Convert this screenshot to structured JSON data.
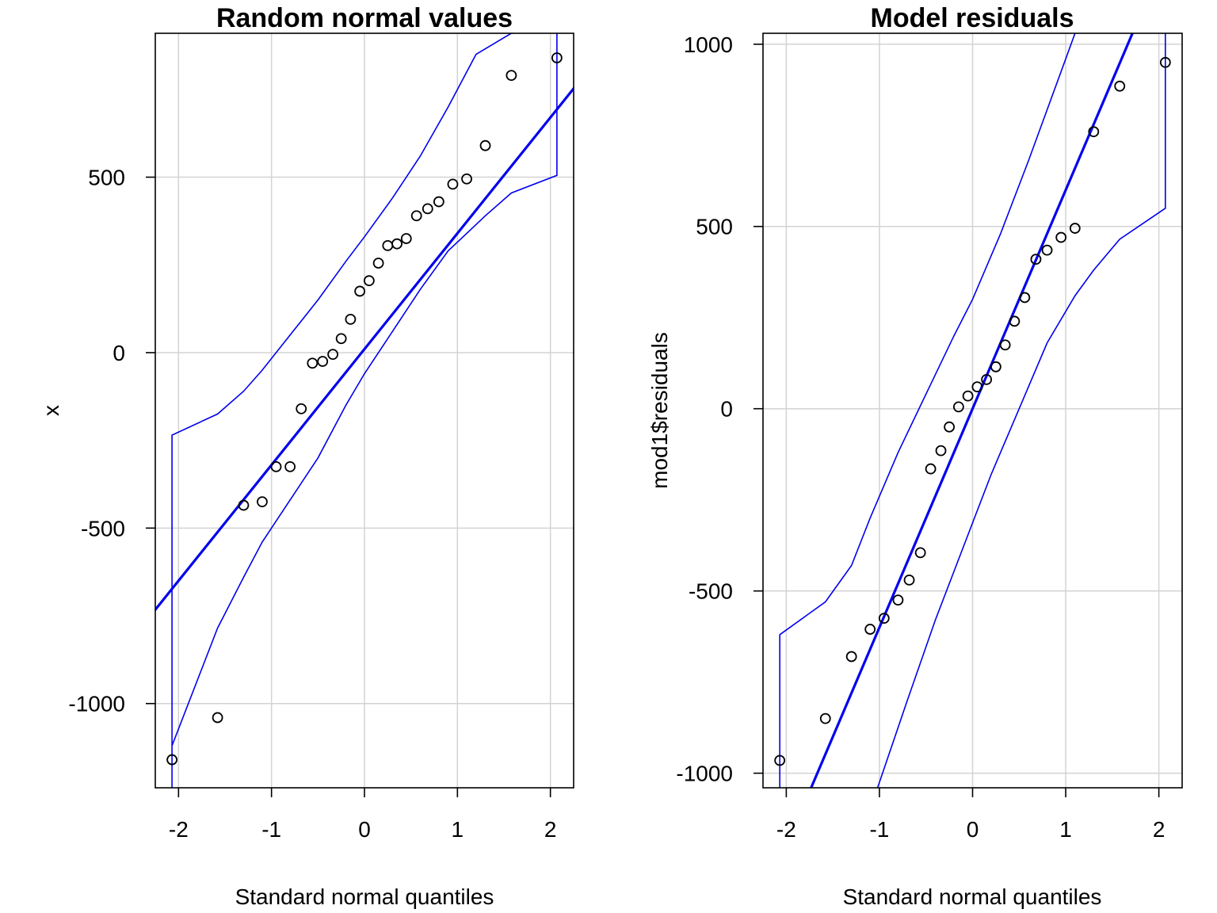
{
  "colors": {
    "envelope": "#0000ee",
    "fit_line": "#0000ee",
    "grid": "#d3d3d3",
    "axis": "#000000",
    "points": "#000000"
  },
  "chart_data": [
    {
      "type": "scatter",
      "title": "Random normal values",
      "xlabel": "Standard normal quantiles",
      "ylabel": "x",
      "xlim": [
        -2.25,
        2.25
      ],
      "ylim": [
        -1240,
        910
      ],
      "xticks": [
        -2,
        -1,
        0,
        1,
        2
      ],
      "xtick_labels": [
        "-2",
        "-1",
        "0",
        "1",
        "2"
      ],
      "yticks": [
        -1000,
        -500,
        0,
        500
      ],
      "ytick_labels": [
        "-1000",
        "-500",
        "0",
        "500"
      ],
      "grid": true,
      "points": {
        "x": [
          -2.07,
          -1.58,
          -1.3,
          -1.1,
          -0.95,
          -0.8,
          -0.68,
          -0.56,
          -0.45,
          -0.34,
          -0.25,
          -0.15,
          -0.05,
          0.05,
          0.15,
          0.25,
          0.35,
          0.45,
          0.56,
          0.68,
          0.8,
          0.95,
          1.1,
          1.3,
          1.58,
          2.07
        ],
        "y": [
          -1160,
          -1040,
          -435,
          -425,
          -325,
          -325,
          -160,
          -30,
          -25,
          -5,
          40,
          95,
          175,
          205,
          255,
          305,
          310,
          325,
          390,
          410,
          430,
          480,
          495,
          590,
          790,
          840
        ]
      },
      "fit_line": {
        "intercept": 10,
        "slope": 330
      },
      "envelope_upper": {
        "x": [
          -2.07,
          -2.07,
          -1.58,
          -1.3,
          -1.1,
          -0.8,
          -0.5,
          -0.2,
          0.0,
          0.3,
          0.6,
          0.9,
          1.2,
          1.58,
          1.6
        ],
        "y": [
          -1240,
          -235,
          -175,
          -110,
          -50,
          50,
          150,
          260,
          330,
          440,
          560,
          700,
          850,
          910,
          910
        ]
      },
      "envelope_lower": {
        "x": [
          -2.07,
          -1.58,
          -1.3,
          -1.1,
          -0.8,
          -0.5,
          -0.2,
          0.0,
          0.3,
          0.6,
          0.9,
          1.1,
          1.3,
          1.58,
          2.07,
          2.07
        ],
        "y": [
          -1120,
          -785,
          -640,
          -540,
          -420,
          -300,
          -150,
          -60,
          60,
          180,
          290,
          340,
          390,
          455,
          505,
          910
        ]
      }
    },
    {
      "type": "scatter",
      "title": "Model residuals",
      "xlabel": "Standard normal quantiles",
      "ylabel": "mod1$residuals",
      "xlim": [
        -2.25,
        2.25
      ],
      "ylim": [
        -1040,
        1030
      ],
      "xticks": [
        -2,
        -1,
        0,
        1,
        2
      ],
      "xtick_labels": [
        "-2",
        "-1",
        "0",
        "1",
        "2"
      ],
      "yticks": [
        -1000,
        -500,
        0,
        500,
        1000
      ],
      "ytick_labels": [
        "-1000",
        "-500",
        "0",
        "500",
        "1000"
      ],
      "grid": true,
      "points": {
        "x": [
          -2.07,
          -1.58,
          -1.3,
          -1.1,
          -0.95,
          -0.8,
          -0.68,
          -0.56,
          -0.45,
          -0.34,
          -0.25,
          -0.15,
          -0.05,
          0.05,
          0.15,
          0.25,
          0.35,
          0.45,
          0.56,
          0.68,
          0.8,
          0.95,
          1.1,
          1.3,
          1.58,
          2.07
        ],
        "y": [
          -965,
          -850,
          -680,
          -605,
          -575,
          -525,
          -470,
          -395,
          -165,
          -115,
          -50,
          5,
          35,
          60,
          80,
          115,
          175,
          240,
          305,
          410,
          435,
          470,
          495,
          760,
          885,
          950
        ]
      },
      "fit_line": {
        "intercept": 0,
        "slope": 600
      },
      "envelope_upper": {
        "x": [
          -2.07,
          -2.07,
          -1.58,
          -1.3,
          -1.1,
          -0.8,
          -0.5,
          -0.2,
          0.0,
          0.3,
          0.6,
          1.0,
          1.1
        ],
        "y": [
          -1040,
          -620,
          -530,
          -430,
          -300,
          -120,
          40,
          200,
          300,
          480,
          680,
          960,
          1030
        ]
      },
      "envelope_lower": {
        "x": [
          -1.02,
          -0.7,
          -0.4,
          -0.1,
          0.2,
          0.5,
          0.8,
          1.1,
          1.3,
          1.58,
          2.07,
          2.07
        ],
        "y": [
          -1040,
          -800,
          -580,
          -380,
          -180,
          0,
          180,
          310,
          380,
          465,
          550,
          1030
        ]
      }
    }
  ]
}
